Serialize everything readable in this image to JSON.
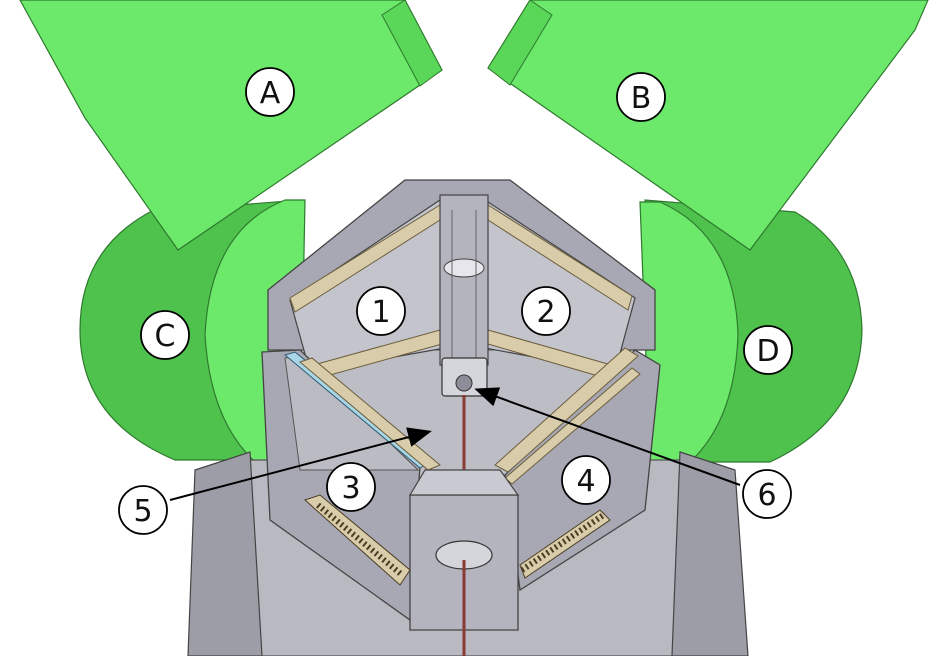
{
  "detectors": [
    {
      "id": "A",
      "label": "A"
    },
    {
      "id": "B",
      "label": "B"
    },
    {
      "id": "C",
      "label": "C"
    },
    {
      "id": "D",
      "label": "D"
    }
  ],
  "chambers": [
    {
      "id": "1",
      "label": "1"
    },
    {
      "id": "2",
      "label": "2"
    },
    {
      "id": "3",
      "label": "3"
    },
    {
      "id": "4",
      "label": "4"
    }
  ],
  "callouts": [
    {
      "id": "5",
      "label": "5"
    },
    {
      "id": "6",
      "label": "6"
    }
  ],
  "colors": {
    "detector_green": "#6ce86a",
    "detector_green_dark": "#4fc24e",
    "frame_gray": "#a8a8b4",
    "frame_gray_dark": "#8d8d99",
    "base_gray": "#b9b9c2",
    "wood": "#d9ccaa"
  }
}
